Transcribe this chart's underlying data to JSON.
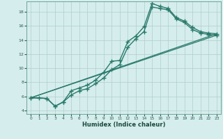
{
  "title": "",
  "xlabel": "Humidex (Indice chaleur)",
  "bg_color": "#d5eded",
  "grid_color": "#b0cccc",
  "line_color": "#2a7a6a",
  "xlim": [
    -0.5,
    23.5
  ],
  "ylim": [
    3.5,
    19.5
  ],
  "xticks": [
    0,
    1,
    2,
    3,
    4,
    5,
    6,
    7,
    8,
    9,
    10,
    11,
    12,
    13,
    14,
    15,
    16,
    17,
    18,
    19,
    20,
    21,
    22,
    23
  ],
  "yticks": [
    4,
    6,
    8,
    10,
    12,
    14,
    16,
    18
  ],
  "series": [
    {
      "x": [
        0,
        1,
        2,
        3,
        4,
        5,
        6,
        7,
        8,
        9,
        10,
        11,
        12,
        13,
        14,
        15,
        16,
        17,
        18,
        19,
        20,
        21,
        22,
        23
      ],
      "y": [
        5.8,
        5.8,
        5.7,
        4.6,
        5.2,
        6.8,
        7.2,
        7.6,
        8.3,
        9.4,
        11.0,
        11.1,
        13.8,
        14.6,
        15.9,
        19.2,
        18.8,
        18.5,
        17.2,
        16.7,
        15.8,
        15.2,
        15.0,
        14.9
      ],
      "marker": "+",
      "markersize": 4,
      "linewidth": 1.0,
      "straight": false
    },
    {
      "x": [
        0,
        2,
        3,
        4,
        5,
        6,
        7,
        8,
        9,
        10,
        11,
        12,
        13,
        14,
        15,
        16,
        17,
        18,
        19,
        20,
        21,
        22,
        23
      ],
      "y": [
        5.8,
        5.7,
        4.6,
        5.2,
        6.2,
        6.8,
        7.1,
        7.8,
        8.6,
        9.8,
        10.5,
        13.0,
        14.2,
        15.2,
        18.7,
        18.5,
        18.3,
        17.0,
        16.5,
        15.5,
        15.0,
        14.8,
        14.7
      ],
      "marker": "+",
      "markersize": 4,
      "linewidth": 1.0,
      "straight": false
    },
    {
      "x": [
        0,
        23
      ],
      "y": [
        5.8,
        14.9
      ],
      "marker": null,
      "markersize": 0,
      "linewidth": 0.9,
      "straight": true
    },
    {
      "x": [
        0,
        23
      ],
      "y": [
        5.8,
        14.7
      ],
      "marker": null,
      "markersize": 0,
      "linewidth": 0.9,
      "straight": true
    }
  ]
}
